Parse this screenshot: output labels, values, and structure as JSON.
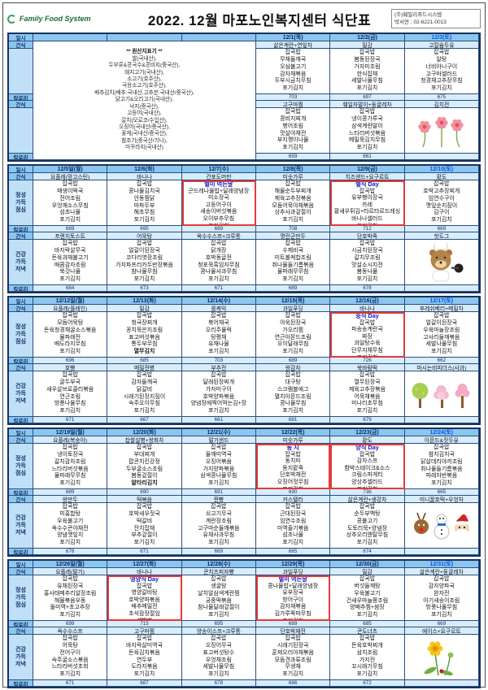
{
  "header": {
    "logo": "Family Food System",
    "title": "2022. 12월 마포노인복지센터 식단표",
    "company": "(주)훼밀리푸드시스템",
    "contact": "박서연 : 02-6221-0013"
  },
  "labels": {
    "date": "일시",
    "snack": "간식",
    "lunch": "정성\n가득\n점심",
    "calorie": "칼로리",
    "dinner": "건강\n가득\n저녁"
  },
  "bold_items": [
    "열무김치",
    "알타리김치",
    "석박지"
  ],
  "accent_colors": {
    "grid": "#16335f",
    "header_fill": "#8cc6ee",
    "row_fill": "#d8edfb",
    "special_box": "#e23b3b",
    "special_text": "#1414cc",
    "saturday": "#0356e0"
  },
  "origin": {
    "lines": [
      "** 원산지표기 **",
      "쌀(국내산),",
      "두부류&콩국수&콩비지(중국산),",
      "돼지고기(국내산),",
      "소고기(호주산),",
      "국용소고기(호주산),",
      "배추김치(배추:국내산,고추분:국내산/중국산),",
      "닭고기&오리고기(국내산),",
      "낙지(중국산),",
      "고등어(국내산),",
      "갈치(모로코/수입산),",
      "오징어(국내산/중국산),",
      "꽃게(국내산/중국산),",
      "참조기(중국산/기니),",
      "미꾸라지(국내산)"
    ]
  },
  "weeks": [
    {
      "first": true,
      "days": [
        {
          "date": "12/1(목)",
          "snack_am": "삶은계란+연잎차",
          "lunch": [
            "잡곡밥",
            "무채들깨국",
            "오삼불고기",
            "감자채볶음",
            "두부시금치무침",
            "포기김치"
          ],
          "lunch_cal": "703",
          "snack_pm": "고구마찜",
          "dinner": [
            "잡곡밥",
            "콩비지찌개",
            "병어조림",
            "맛살야채전",
            "부지깽이나물",
            "포기김치"
          ],
          "dinner_cal": "659"
        },
        {
          "date": "12/2(금)",
          "snack_am": "밀감",
          "lunch": [
            "잡곡밥",
            "봄동된장국",
            "가자미조림",
            "한식잡채",
            "세발나물무침",
            "포기김치"
          ],
          "lunch_cal": "697",
          "snack_pm": "훼일자말이+둥굴레차",
          "dinner": [
            "잡곡밥",
            "냉이콩가루국",
            "삼색계란말이",
            "느타리버섯볶음",
            "메밀묵김치무침",
            "포기김치"
          ],
          "dinner_cal": "661"
        },
        {
          "date": "12/3(토)",
          "sat": true,
          "snack_am": "고칼슘두유",
          "lunch": [
            "잡곡밥",
            "알탕",
            "너비아니구이",
            "고구마샐러드",
            "청경채고추장무침",
            "포기김치"
          ],
          "lunch_cal": "675",
          "snack_pm": "김치전",
          "deco": "flowers",
          "dinner_cal": ""
        }
      ]
    },
    {
      "days": [
        {
          "date": "12/5일(월)",
          "snack_am": "요플레(망고스틴)",
          "lunch": [
            "잡곡밥",
            "매생이떡국",
            "전어조림",
            "우엉깨소스무침",
            "섬초나물",
            "포기김치"
          ],
          "lunch_cal": "689",
          "snack_pm": "프렌치토스트",
          "dinner": [
            "잡곡밥",
            "바지락살무국",
            "돈육과채불고기",
            "매콤감자조림",
            "쑥갓나물",
            "포기김치"
          ],
          "dinner_cal": "684"
        },
        {
          "date": "12/6(화)",
          "snack_am": "바나나",
          "lunch": [
            "잡곡밥",
            "콩나물김치국",
            "안동찜닭",
            "마파두부",
            "해초무침",
            "포기김치"
          ],
          "lunch_cal": "695",
          "snack_pm": "어묵탕",
          "dinner": [
            "잡곡밥",
            "얼갈이된장국",
            "코다리엿장조림",
            "가지파프리카두반장볶음",
            "참나물무침",
            "포기김치"
          ],
          "dinner_cal": "673"
        },
        {
          "date": "12/7(수)",
          "snack_am": "건포도머핀",
          "special": "별미 먹는날",
          "lunch": [
            "곤드레나물밥+달래양념장",
            "미소장국",
            "고등어구이",
            "새송이버섯볶음",
            "오이부추무침",
            "포기김치"
          ],
          "lunch_cal": "689",
          "snack_pm": "옥수수스프+크루통",
          "dinner": [
            "잡곡밥",
            "닭개장",
            "호박동글전",
            "청포묵흑임자무침",
            "콩나물사과무침",
            "포기김치"
          ],
          "dinner_cal": "671"
        },
        {
          "date": "12/8(목)",
          "snack_am": "미숫가루",
          "lunch": [
            "잡곡밥",
            "해물순두부찌개",
            "제육고추장볶음",
            "모둠어묵야채볶음",
            "상추사과겉절이",
            "포기김치"
          ],
          "lunch_cal": "708",
          "snack_pm": "명란군만두",
          "dinner": [
            "잡곡밥",
            "수제비국",
            "미트볼케찹조림",
            "취나물들기름볶음",
            "물파래무무침",
            "포기김치"
          ],
          "dinner_cal": "689"
        },
        {
          "date": "12/9(금)",
          "snack_am": "치즈샌드+요구르트",
          "special": "별식 Day",
          "lunch": [
            "잡곡밥",
            "유부팽이장국",
            "카레",
            "황새우튀김+타르타르드레싱",
            "바나나샐러드",
            "포기김치"
          ],
          "lunch_cal": "712",
          "snack_pm": "단호박죽",
          "dinner": [
            "잡곡밥",
            "시금치된장국",
            "갈치무조림",
            "맛살소시지전",
            "봄동나물",
            "포기김치"
          ],
          "dinner_cal": "678"
        },
        {
          "date": "12/10(토)",
          "sat": true,
          "snack_am": "황도",
          "lunch": [
            "잡곡밥",
            "호박고추장찌개",
            "임연수구이",
            "깻잎순지짐이",
            "김구이",
            "포기김치"
          ],
          "lunch_cal": "669",
          "snack_pm": "핫도그",
          "deco": "chefbear",
          "dinner_cal": ""
        }
      ]
    },
    {
      "days": [
        {
          "date": "12/12일(월)",
          "snack_am": "요플레(플레인)",
          "lunch": [
            "잡곡밥",
            "모듬어묵탕",
            "돈육청경채굴소스볶음",
            "물파래전",
            "배도라지무침",
            "포기김치"
          ],
          "lunch_cal": "696",
          "snack_pm": "호빵",
          "dinner": [
            "잡곡밥",
            "굴두부국",
            "새우살브로콜리볶음",
            "연근조림",
            "방풍나물무침",
            "포기김치"
          ],
          "dinner_cal": "671"
        },
        {
          "date": "12/13(화)",
          "snack_am": "밀감",
          "lunch": [
            "잡곡밥",
            "청국장찌개",
            "꽁치묵은지조림",
            "표고버섯볶음",
            "통두부무침",
            "열무김치"
          ],
          "lunch_cal": "685",
          "snack_pm": "메밀전병",
          "dinner": [
            "잡곡밥",
            "감자들깨국",
            "닭갈비",
            "시래기된장지짐이",
            "숙주오이무침",
            "포기김치"
          ],
          "dinner_cal": "667"
        },
        {
          "date": "12/14(수)",
          "snack_am": "롤케익",
          "lunch": [
            "잡곡밥",
            "북어채국",
            "오리주물럭",
            "탕평채",
            "유채나물",
            "포기김치"
          ],
          "lunch_cal": "703",
          "snack_pm": "부추전",
          "dinner": [
            "잡곡밥",
            "달래된장찌개",
            "가자미구이",
            "호박양파볶음",
            "양념장에찍어먹는김+장",
            "포기김치"
          ],
          "dinner_cal": "661"
        },
        {
          "date": "12/15(목)",
          "snack_am": "과일푸딩",
          "lunch": [
            "잡곡밥",
            "아욱된장국",
            "가오리찜",
            "연근아몬드조림",
            "오이달래무침",
            "포기김치"
          ],
          "lunch_cal": "689",
          "snack_pm": "왕감자",
          "dinner": [
            "잡곡밥",
            "대구탕",
            "스크램블에그",
            "멸치아몬드조림",
            "콩나물무침",
            "포기김치"
          ],
          "dinner_cal": "681"
        },
        {
          "date": "12/16(금)",
          "snack_am": "바나나",
          "special": "중식 Day",
          "lunch": [
            "잡곡밥",
            "파송송계란국",
            "짜장",
            "과일탕수육",
            "단무지채무침",
            "포기김치"
          ],
          "lunch_cal": "726",
          "snack_pm": "쑥바람떡",
          "dinner": [
            "잡곡밥",
            "열무된장국",
            "제육고추장볶음",
            "어묵채볶음",
            "미나리초무침",
            "포기김치"
          ],
          "dinner_cal": "679"
        },
        {
          "date": "12/17(토)",
          "sat": true,
          "snack_am": "후레쉬베리+메밀차",
          "lunch": [
            "잡곡밥",
            "얼갈이된장국",
            "우육마늘장조림",
            "고사리들깨볶음",
            "세발나물무침",
            "포기김치"
          ],
          "lunch_cal": "662",
          "snack_pm": "마시는비피더스(사과)",
          "deco": "trees",
          "dinner_cal": ""
        }
      ]
    },
    {
      "days": [
        {
          "date": "12/19일(월)",
          "snack_am": "요플레(복숭아)",
          "lunch": [
            "잡곡밥",
            "냉이토장국",
            "갈치감자조림",
            "느타리버섯볶음",
            "물파래무무침",
            "포기김치"
          ],
          "lunch_cal": "689",
          "snack_pm": "왕만두",
          "dinner": [
            "잡곡밥",
            "피홍합탕",
            "우육불고기",
            "옥수수콘야채전",
            "양념깻잎지",
            "포기김치"
          ],
          "dinner_cal": "678"
        },
        {
          "date": "12/20(화)",
          "snack_am": "찹쌀설병+쌍화차",
          "lunch": [
            "잡곡밥",
            "부대찌개",
            "팝콘치킨강정",
            "두부굴소스조림",
            "봄동겉절이",
            "알타리김치"
          ],
          "lunch_cal": "690",
          "snack_pm": "떡볶음",
          "dinner": [
            "잡곡밥",
            "호박새우젓국",
            "떡갈비",
            "잔치잡채",
            "부추겉절이",
            "포기김치"
          ],
          "dinner_cal": "671"
        },
        {
          "date": "12/21(수)",
          "snack_am": "딸기샌드",
          "lunch": [
            "잡곡밥",
            "들깨미역국",
            "오징어볶음",
            "가지양파볶음",
            "삼색콩나물무침",
            "포기김치"
          ],
          "lunch_cal": "691",
          "snack_pm": "찐빵",
          "dinner": [
            "잡곡밥",
            "쇠고기무국",
            "계란장조림",
            "고구마순들깨볶음",
            "유채사과무침",
            "포기김치"
          ],
          "dinner_cal": "669"
        },
        {
          "date": "12/22(목)",
          "snack_am": "미숫가루",
          "special": "동 지",
          "lunch": [
            "잡곡밥",
            "동치미",
            "동지팥죽",
            "단호박채전",
            "오징어젓무침",
            "포기김치"
          ],
          "lunch_cal": "690",
          "snack_pm": "카스텔라",
          "dinner": [
            "잡곡밥",
            "근대된장국",
            "임연수조림",
            "미역줄기볶음",
            "섬초나물",
            "포기김치"
          ],
          "dinner_cal": "665"
        },
        {
          "date": "12/23(금)",
          "snack_am": "황도",
          "special": "양식 Day",
          "lunch": [
            "잡곡밥",
            "감자스프",
            "함박스테이크&소스",
            "크림스파게티",
            "양상추샐러드",
            "포기김치"
          ],
          "lunch_cal": "736",
          "snack_pm": "삶은계란+생강차",
          "dinner": [
            "잡곡밥",
            "순두부백탕",
            "콩불고기",
            "도토리묵+양념장",
            "상추오리엔탈무침",
            "포기김치"
          ],
          "dinner_cal": "674"
        },
        {
          "date": "12/24(토)",
          "sat": true,
          "snack_am": "아몬드&잣두유",
          "lunch": [
            "잡곡밥",
            "참치김치국",
            "닭살데리야끼조림",
            "취나물들기름볶음",
            "파래자반볶음",
            "포기김치"
          ],
          "lunch_cal": "665",
          "snack_pm": "미니꿀호떡+우엉차",
          "deco": "christmas",
          "dinner_cal": ""
        }
      ]
    },
    {
      "days": [
        {
          "date": "12/26일(월)",
          "snack_am": "요플레(딸기)",
          "lunch": [
            "잡곡밥",
            "유채된장국",
            "홍사태메추리알장조림",
            "해물볶음우동",
            "돌미역+초고추장",
            "포기김치"
          ],
          "lunch_cal": "699",
          "snack_pm": "옥수수스프",
          "dinner": [
            "잡곡밥",
            "어묵탕",
            "전어구이",
            "숙주굴소스볶음",
            "느타리버섯초회",
            "포기김치"
          ],
          "dinner_cal": "671"
        },
        {
          "date": "12/27(화)",
          "snack_am": "바나나",
          "special": "영양식 Day",
          "lunch": [
            "잡곡밥",
            "영양갈비탕",
            "호박양파볶음",
            "배추메밀전",
            "초석잠장절임",
            "석박지"
          ],
          "lunch_cal": "715",
          "snack_pm": "고구마찜",
          "dinner": [
            "잡곡밥",
            "바지락살미역국",
            "돈육김치볶음",
            "연두부",
            "도라지볶음",
            "포기김치"
          ],
          "dinner_cal": "687"
        },
        {
          "date": "12/28(수)",
          "snack_am": "콘치즈피자빵",
          "lunch": [
            "잡곡밥",
            "생굴탕",
            "날치알삼색계란찜",
            "궁중떡볶음",
            "참나물달래겉절이",
            "포기김치"
          ],
          "lunch_cal": "695",
          "snack_pm": "양송이스프+크루통",
          "dinner": [
            "잡곡밥",
            "오징어무국",
            "표고버섯탕수",
            "우엉채조림",
            "세발나물무침",
            "포기김치"
          ],
          "dinner_cal": "678"
        },
        {
          "date": "12/29(목)",
          "snack_am": "과일푸딩",
          "special": "별미 먹는날",
          "lunch": [
            "콩나물밥+달래양념장",
            "유부장국",
            "방어구이",
            "감자채볶음",
            "김가루쪽파무침",
            "포기김치"
          ],
          "lunch_cal": "689",
          "snack_pm": "단호박채전",
          "dinner": [
            "잡곡밥",
            "시래기된장국",
            "훈제오리야채볶음",
            "모듬견과류조림",
            "무생채",
            "포기김치"
          ],
          "dinner_cal": "686"
        },
        {
          "date": "12/30(금)",
          "snack_am": "밀감",
          "lunch": [
            "잡곡밥",
            "버섯들깨탕",
            "우육불고기",
            "건새우마늘쫑조림",
            "양배추찜+쌈장",
            "포기김치"
          ],
          "lunch_cal": "685",
          "snack_pm": "콘도너츠",
          "dinner": [
            "잡곡밥",
            "돈육호박찌개",
            "삼치조림",
            "가지전",
            "꼬시래기무침",
            "포기김치"
          ],
          "dinner_cal": "672"
        },
        {
          "date": "12/31(토)",
          "sat": true,
          "snack_am": "삶은계란+둥굴레차",
          "lunch": [
            "잡곡밥",
            "감자양파국",
            "완자전",
            "아기새송이조림",
            "방풍나물무침",
            "포기김치"
          ],
          "lunch_cal": "669",
          "snack_pm": "에이스+요구르트",
          "deco": "dandelion",
          "dinner_cal": ""
        }
      ]
    }
  ]
}
